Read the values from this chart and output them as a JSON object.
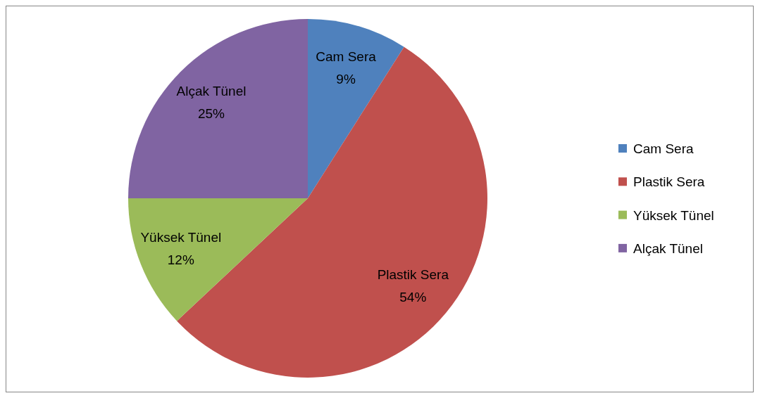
{
  "chart_data": {
    "type": "pie",
    "categories": [
      "Cam Sera",
      "Plastik Sera",
      "Yüksek Tünel",
      "Alçak Tünel"
    ],
    "values": [
      9,
      54,
      12,
      25
    ],
    "value_labels": [
      "9%",
      "54%",
      "12%",
      "25%"
    ],
    "colors": [
      "#4f81bd",
      "#c0504d",
      "#9bbb59",
      "#8064a2"
    ],
    "legend": "right"
  }
}
